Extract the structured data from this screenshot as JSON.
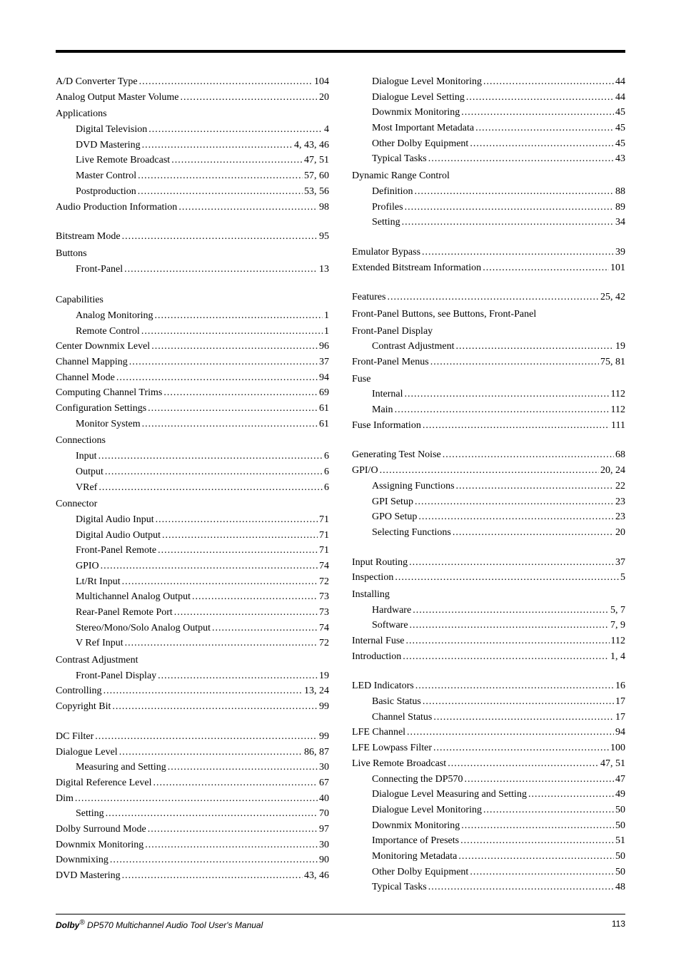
{
  "footer": {
    "left_html": "<b><i>Dolby</i></b><sup>®</sup> DP570 Multichannel Audio Tool User's Manual",
    "page": "113"
  },
  "left": [
    {
      "t": "e",
      "label": "A/D Converter Type",
      "pages": "104"
    },
    {
      "t": "e",
      "label": "Analog Output Master Volume",
      "pages": "20"
    },
    {
      "t": "h",
      "label": "Applications"
    },
    {
      "t": "s",
      "label": "Digital Television",
      "pages": "4"
    },
    {
      "t": "s",
      "label": "DVD Mastering",
      "pages": "4, 43, 46"
    },
    {
      "t": "s",
      "label": "Live Remote Broadcast",
      "pages": "47, 51"
    },
    {
      "t": "s",
      "label": "Master Control",
      "pages": "57, 60"
    },
    {
      "t": "s",
      "label": "Postproduction",
      "pages": "53, 56"
    },
    {
      "t": "e",
      "label": "Audio Production Information",
      "pages": "98"
    },
    {
      "t": "sp"
    },
    {
      "t": "e",
      "label": "Bitstream Mode",
      "pages": "95"
    },
    {
      "t": "h",
      "label": "Buttons"
    },
    {
      "t": "s",
      "label": "Front-Panel",
      "pages": "13"
    },
    {
      "t": "sp"
    },
    {
      "t": "h",
      "label": "Capabilities"
    },
    {
      "t": "s",
      "label": "Analog Monitoring",
      "pages": "1"
    },
    {
      "t": "s",
      "label": "Remote Control",
      "pages": "1"
    },
    {
      "t": "e",
      "label": "Center Downmix Level",
      "pages": "96"
    },
    {
      "t": "e",
      "label": "Channel Mapping",
      "pages": "37"
    },
    {
      "t": "e",
      "label": "Channel Mode",
      "pages": "94"
    },
    {
      "t": "e",
      "label": "Computing Channel Trims",
      "pages": "69"
    },
    {
      "t": "e",
      "label": "Configuration Settings",
      "pages": "61"
    },
    {
      "t": "s",
      "label": "Monitor System",
      "pages": "61"
    },
    {
      "t": "h",
      "label": "Connections"
    },
    {
      "t": "s",
      "label": "Input",
      "pages": "6"
    },
    {
      "t": "s",
      "label": "Output",
      "pages": "6"
    },
    {
      "t": "s",
      "label": "VRef",
      "pages": "6"
    },
    {
      "t": "h",
      "label": "Connector"
    },
    {
      "t": "s",
      "label": "Digital Audio Input",
      "pages": "71"
    },
    {
      "t": "s",
      "label": "Digital Audio Output",
      "pages": "71"
    },
    {
      "t": "s",
      "label": "Front-Panel Remote",
      "pages": "71"
    },
    {
      "t": "s",
      "label": "GPIO",
      "pages": "74"
    },
    {
      "t": "s",
      "label": "Lt/Rt Input",
      "pages": "72"
    },
    {
      "t": "s",
      "label": "Multichannel Analog Output",
      "pages": "73"
    },
    {
      "t": "s",
      "label": "Rear-Panel Remote Port",
      "pages": "73"
    },
    {
      "t": "s",
      "label": "Stereo/Mono/Solo Analog Output",
      "pages": "74"
    },
    {
      "t": "s",
      "label": "V Ref Input",
      "pages": "72"
    },
    {
      "t": "h",
      "label": "Contrast Adjustment"
    },
    {
      "t": "s",
      "label": "Front-Panel Display",
      "pages": "19"
    },
    {
      "t": "e",
      "label": "Controlling",
      "pages": "13, 24"
    },
    {
      "t": "e",
      "label": "Copyright Bit",
      "pages": "99"
    },
    {
      "t": "sp"
    },
    {
      "t": "e",
      "label": "DC Filter",
      "pages": "99"
    },
    {
      "t": "e",
      "label": "Dialogue Level",
      "pages": "86, 87"
    },
    {
      "t": "s",
      "label": "Measuring and Setting",
      "pages": "30"
    },
    {
      "t": "e",
      "label": "Digital Reference Level",
      "pages": "67"
    },
    {
      "t": "e",
      "label": "Dim",
      "pages": "40"
    },
    {
      "t": "s",
      "label": "Setting",
      "pages": "70"
    },
    {
      "t": "e",
      "label": "Dolby Surround Mode",
      "pages": "97"
    },
    {
      "t": "e",
      "label": "Downmix Monitoring",
      "pages": "30"
    },
    {
      "t": "e",
      "label": "Downmixing",
      "pages": "90"
    },
    {
      "t": "e",
      "label": "DVD Mastering",
      "pages": "43, 46"
    }
  ],
  "right": [
    {
      "t": "s",
      "label": "Dialogue Level Monitoring",
      "pages": "44"
    },
    {
      "t": "s",
      "label": "Dialogue Level Setting",
      "pages": "44"
    },
    {
      "t": "s",
      "label": "Downmix Monitoring",
      "pages": "45"
    },
    {
      "t": "s",
      "label": "Most Important Metadata",
      "pages": "45"
    },
    {
      "t": "s",
      "label": "Other Dolby Equipment",
      "pages": "45"
    },
    {
      "t": "s",
      "label": "Typical Tasks",
      "pages": "43"
    },
    {
      "t": "h",
      "label": "Dynamic Range Control"
    },
    {
      "t": "s",
      "label": "Definition",
      "pages": "88"
    },
    {
      "t": "s",
      "label": "Profiles",
      "pages": "89"
    },
    {
      "t": "s",
      "label": "Setting",
      "pages": "34"
    },
    {
      "t": "sp"
    },
    {
      "t": "e",
      "label": "Emulator Bypass",
      "pages": "39"
    },
    {
      "t": "e",
      "label": "Extended Bitstream Information",
      "pages": "101"
    },
    {
      "t": "sp"
    },
    {
      "t": "e",
      "label": "Features",
      "pages": "25, 42"
    },
    {
      "t": "h",
      "label": "Front-Panel Buttons, see Buttons, Front-Panel"
    },
    {
      "t": "h",
      "label": "Front-Panel Display"
    },
    {
      "t": "s",
      "label": "Contrast Adjustment",
      "pages": "19"
    },
    {
      "t": "e",
      "label": "Front-Panel Menus",
      "pages": "75, 81"
    },
    {
      "t": "h",
      "label": "Fuse"
    },
    {
      "t": "s",
      "label": "Internal",
      "pages": "112"
    },
    {
      "t": "s",
      "label": "Main",
      "pages": "112"
    },
    {
      "t": "e",
      "label": "Fuse Information",
      "pages": "111"
    },
    {
      "t": "sp"
    },
    {
      "t": "e",
      "label": "Generating Test Noise",
      "pages": "68"
    },
    {
      "t": "e",
      "label": "GPI/O",
      "pages": "20, 24"
    },
    {
      "t": "s",
      "label": "Assigning Functions",
      "pages": "22"
    },
    {
      "t": "s",
      "label": "GPI Setup",
      "pages": "23"
    },
    {
      "t": "s",
      "label": "GPO Setup",
      "pages": "23"
    },
    {
      "t": "s",
      "label": "Selecting Functions",
      "pages": "20"
    },
    {
      "t": "sp"
    },
    {
      "t": "e",
      "label": "Input Routing",
      "pages": "37"
    },
    {
      "t": "e",
      "label": "Inspection",
      "pages": "5"
    },
    {
      "t": "h",
      "label": "Installing"
    },
    {
      "t": "s",
      "label": "Hardware",
      "pages": "5, 7"
    },
    {
      "t": "s",
      "label": "Software",
      "pages": "7, 9"
    },
    {
      "t": "e",
      "label": "Internal Fuse",
      "pages": "112"
    },
    {
      "t": "e",
      "label": "Introduction",
      "pages": "1, 4"
    },
    {
      "t": "sp"
    },
    {
      "t": "e",
      "label": "LED Indicators",
      "pages": "16"
    },
    {
      "t": "s",
      "label": "Basic Status",
      "pages": "17"
    },
    {
      "t": "s",
      "label": "Channel Status",
      "pages": "17"
    },
    {
      "t": "e",
      "label": "LFE Channel",
      "pages": "94"
    },
    {
      "t": "e",
      "label": "LFE Lowpass Filter",
      "pages": "100"
    },
    {
      "t": "e",
      "label": "Live Remote Broadcast",
      "pages": "47, 51"
    },
    {
      "t": "s",
      "label": "Connecting the DP570",
      "pages": "47"
    },
    {
      "t": "s",
      "label": "Dialogue Level Measuring and Setting",
      "pages": "49"
    },
    {
      "t": "s",
      "label": "Dialogue Level Monitoring",
      "pages": "50"
    },
    {
      "t": "s",
      "label": "Downmix Monitoring",
      "pages": "50"
    },
    {
      "t": "s",
      "label": "Importance of Presets",
      "pages": "51"
    },
    {
      "t": "s",
      "label": "Monitoring Metadata",
      "pages": "50"
    },
    {
      "t": "s",
      "label": "Other Dolby Equipment",
      "pages": "50"
    },
    {
      "t": "s",
      "label": "Typical Tasks",
      "pages": "48"
    }
  ]
}
